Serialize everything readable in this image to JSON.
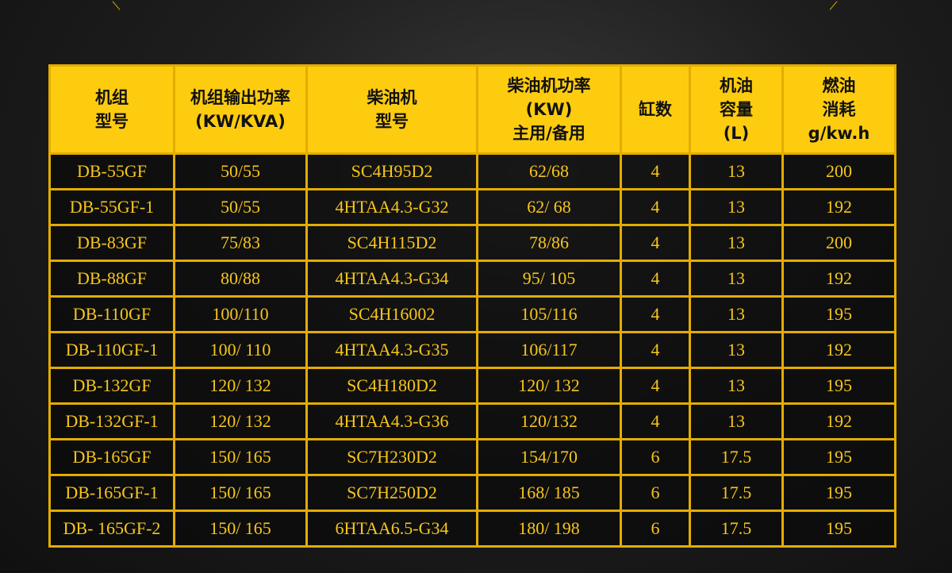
{
  "table": {
    "headers": [
      "机组\n型号",
      "机组输出功率\n(KW/KVA)",
      "柴油机\n型号",
      "柴油机功率\n(KW)\n主用/备用",
      "缸数",
      "机油\n容量\n(L)",
      "燃油\n消耗\ng/kw.h"
    ],
    "rows": [
      [
        "DB-55GF",
        "50/55",
        "SC4H95D2",
        "62/68",
        "4",
        "13",
        "200"
      ],
      [
        "DB-55GF-1",
        "50/55",
        "4HTAA4.3-G32",
        "62/ 68",
        "4",
        "13",
        "192"
      ],
      [
        "DB-83GF",
        "75/83",
        "SC4H115D2",
        "78/86",
        "4",
        "13",
        "200"
      ],
      [
        "DB-88GF",
        "80/88",
        "4HTAA4.3-G34",
        "95/ 105",
        "4",
        "13",
        "192"
      ],
      [
        "DB-110GF",
        "100/110",
        "SC4H16002",
        "105/116",
        "4",
        "13",
        "195"
      ],
      [
        "DB-110GF-1",
        "100/ 110",
        "4HTAA4.3-G35",
        "106/117",
        "4",
        "13",
        "192"
      ],
      [
        "DB-132GF",
        "120/ 132",
        "SC4H180D2",
        "120/ 132",
        "4",
        "13",
        "195"
      ],
      [
        "DB-132GF-1",
        "120/ 132",
        "4HTAA4.3-G36",
        "120/132",
        "4",
        "13",
        "192"
      ],
      [
        "DB-165GF",
        "150/ 165",
        "SC7H230D2",
        "154/170",
        "6",
        "17.5",
        "195"
      ],
      [
        "DB-165GF-1",
        "150/ 165",
        "SC7H250D2",
        "168/ 185",
        "6",
        "17.5",
        "195"
      ],
      [
        "DB- 165GF-2",
        "150/ 165",
        "6HTAA6.5-G34",
        "180/ 198",
        "6",
        "17.5",
        "195"
      ]
    ]
  }
}
